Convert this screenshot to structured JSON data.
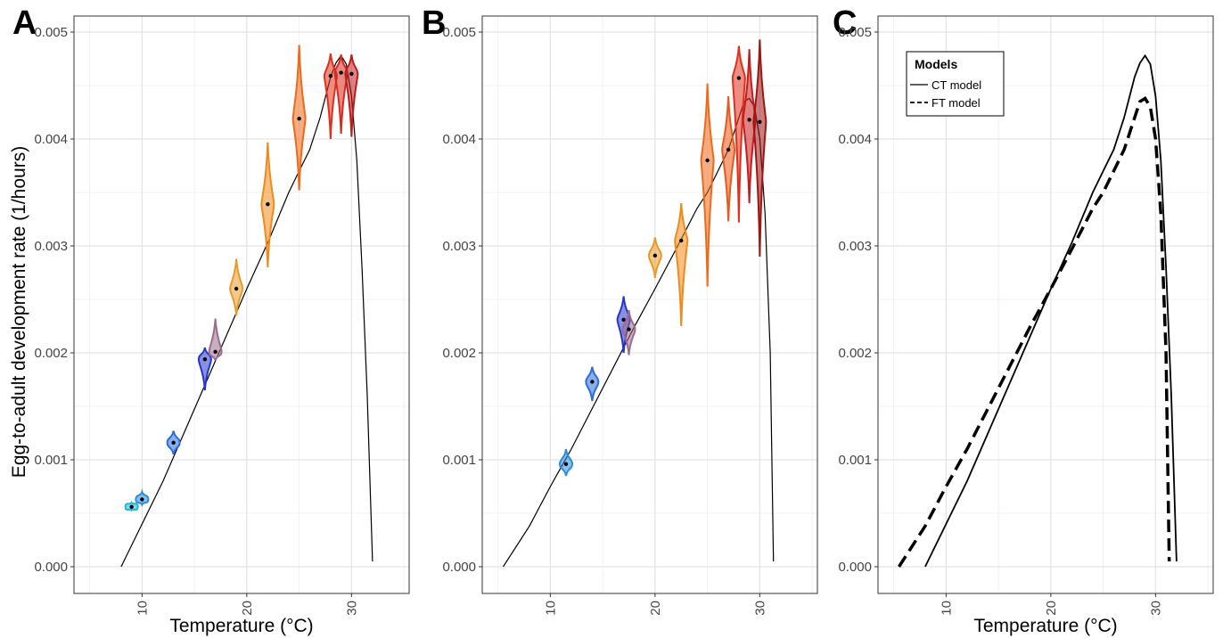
{
  "figure": {
    "ylabel": "Egg-to-adult   development rate (1/hours)"
  },
  "chart_data": [
    {
      "panel": "A",
      "type": "line",
      "xlabel": "Temperature (°C)",
      "ylabel": "Egg-to-adult   development rate (1/hours)",
      "xlim": [
        3.5,
        35.5
      ],
      "ylim": [
        -0.00025,
        0.00515
      ],
      "xticks": [
        10,
        20,
        30
      ],
      "xticks_labels": [
        "10",
        "20",
        "30"
      ],
      "yticks": [
        0.0,
        0.001,
        0.002,
        0.003,
        0.004,
        0.005
      ],
      "yticks_labels": [
        "0.000",
        "0.001",
        "0.002",
        "0.003",
        "0.004",
        "0.005"
      ],
      "grid": true,
      "curve": {
        "x": [
          8,
          10,
          12,
          14,
          16,
          18,
          20,
          22,
          24,
          25,
          26,
          27,
          28,
          28.5,
          29,
          29.5,
          30,
          30.5,
          31,
          31.5,
          32
        ],
        "y": [
          0.0,
          0.0004,
          0.0008,
          0.00125,
          0.0017,
          0.00215,
          0.0026,
          0.00303,
          0.0035,
          0.0037,
          0.0039,
          0.0042,
          0.00458,
          0.00471,
          0.00478,
          0.0047,
          0.0044,
          0.0038,
          0.0028,
          0.0016,
          5e-05
        ]
      },
      "violins": [
        {
          "x": 9,
          "median": 0.00056,
          "lo": 0.00053,
          "hi": 0.0006,
          "color": "#21b8d6"
        },
        {
          "x": 10,
          "median": 0.00063,
          "lo": 0.00058,
          "hi": 0.0007,
          "color": "#2c8bdb"
        },
        {
          "x": 13,
          "median": 0.00116,
          "lo": 0.00105,
          "hi": 0.00127,
          "color": "#2a6cdc"
        },
        {
          "x": 16,
          "median": 0.00194,
          "lo": 0.00165,
          "hi": 0.00205,
          "color": "#2535c9"
        },
        {
          "x": 17,
          "median": 0.00201,
          "lo": 0.00193,
          "hi": 0.00232,
          "color": "#9c6b8e"
        },
        {
          "x": 19,
          "median": 0.0026,
          "lo": 0.00235,
          "hi": 0.00288,
          "color": "#e99a2a"
        },
        {
          "x": 22,
          "median": 0.00339,
          "lo": 0.0028,
          "hi": 0.00397,
          "color": "#f08a1a"
        },
        {
          "x": 25,
          "median": 0.00419,
          "lo": 0.00352,
          "hi": 0.00488,
          "color": "#ee6a1a"
        },
        {
          "x": 28,
          "median": 0.00459,
          "lo": 0.004,
          "hi": 0.0048,
          "color": "#e0301c"
        },
        {
          "x": 29,
          "median": 0.00462,
          "lo": 0.00405,
          "hi": 0.00479,
          "color": "#d62a1e"
        },
        {
          "x": 30,
          "median": 0.00461,
          "lo": 0.00402,
          "hi": 0.00479,
          "color": "#c01c1c"
        }
      ]
    },
    {
      "panel": "B",
      "type": "line",
      "xlabel": "",
      "ylabel": "",
      "xlim": [
        3.5,
        35.5
      ],
      "ylim": [
        -0.00025,
        0.00515
      ],
      "xticks": [
        10,
        20,
        30
      ],
      "xticks_labels": [
        "10",
        "20",
        "30"
      ],
      "yticks": [
        0.0,
        0.001,
        0.002,
        0.003,
        0.004,
        0.005
      ],
      "yticks_labels": [
        "0.000",
        "0.001",
        "0.002",
        "0.003",
        "0.004",
        "0.005"
      ],
      "grid": true,
      "curve": {
        "x": [
          5.5,
          8,
          10,
          12,
          14,
          16,
          18,
          20,
          22,
          24,
          25,
          26,
          27,
          28,
          28.5,
          29,
          29.5,
          30,
          30.5,
          31,
          31.3
        ],
        "y": [
          0.0,
          0.00038,
          0.00075,
          0.0011,
          0.00148,
          0.00186,
          0.00224,
          0.0026,
          0.00297,
          0.00335,
          0.0035,
          0.0037,
          0.0039,
          0.0042,
          0.00435,
          0.00438,
          0.0043,
          0.004,
          0.0033,
          0.002,
          5e-05
        ]
      },
      "violins": [
        {
          "x": 11.5,
          "median": 0.00096,
          "lo": 0.00085,
          "hi": 0.0011,
          "color": "#2c8bdb"
        },
        {
          "x": 14,
          "median": 0.00173,
          "lo": 0.00155,
          "hi": 0.00187,
          "color": "#2a6cdc"
        },
        {
          "x": 17,
          "median": 0.00231,
          "lo": 0.002,
          "hi": 0.00253,
          "color": "#2535c9"
        },
        {
          "x": 17.5,
          "median": 0.00222,
          "lo": 0.00198,
          "hi": 0.0024,
          "color": "#9c6b8e"
        },
        {
          "x": 20,
          "median": 0.00291,
          "lo": 0.0027,
          "hi": 0.00308,
          "color": "#e99a2a"
        },
        {
          "x": 22.5,
          "median": 0.00305,
          "lo": 0.00225,
          "hi": 0.0034,
          "color": "#f08a1a"
        },
        {
          "x": 25,
          "median": 0.0038,
          "lo": 0.00262,
          "hi": 0.00452,
          "color": "#ee6a1a"
        },
        {
          "x": 27,
          "median": 0.0039,
          "lo": 0.00323,
          "hi": 0.0044,
          "color": "#e85a1a"
        },
        {
          "x": 28,
          "median": 0.00457,
          "lo": 0.00322,
          "hi": 0.00487,
          "color": "#e0301c"
        },
        {
          "x": 29,
          "median": 0.00418,
          "lo": 0.0034,
          "hi": 0.00484,
          "color": "#c81c1c"
        },
        {
          "x": 30,
          "median": 0.00416,
          "lo": 0.0029,
          "hi": 0.00493,
          "color": "#a01414"
        }
      ]
    },
    {
      "panel": "C",
      "type": "line",
      "xlabel": "Temperature (°C)",
      "ylabel": "",
      "xlim": [
        3.5,
        35.5
      ],
      "ylim": [
        -0.00025,
        0.00515
      ],
      "xticks": [
        10,
        20,
        30
      ],
      "xticks_labels": [
        "10",
        "20",
        "30"
      ],
      "yticks": [
        0.0,
        0.001,
        0.002,
        0.003,
        0.004,
        0.005
      ],
      "yticks_labels": [
        "0.000",
        "0.001",
        "0.002",
        "0.003",
        "0.004",
        "0.005"
      ],
      "grid": true,
      "legend": {
        "title": "Models",
        "position": "top-left",
        "entries": [
          "CT model",
          "FT model"
        ]
      },
      "series": [
        {
          "name": "CT model",
          "style": "solid",
          "x": [
            8,
            10,
            12,
            14,
            16,
            18,
            20,
            22,
            24,
            25,
            26,
            27,
            28,
            28.5,
            29,
            29.5,
            30,
            30.5,
            31,
            31.5,
            32
          ],
          "y": [
            0.0,
            0.0004,
            0.0008,
            0.00125,
            0.0017,
            0.00215,
            0.0026,
            0.00303,
            0.0035,
            0.0037,
            0.0039,
            0.0042,
            0.00458,
            0.00471,
            0.00478,
            0.0047,
            0.0044,
            0.0038,
            0.0028,
            0.0016,
            5e-05
          ]
        },
        {
          "name": "FT model",
          "style": "dashed",
          "x": [
            5.5,
            8,
            10,
            12,
            14,
            16,
            18,
            20,
            22,
            24,
            25,
            26,
            27,
            28,
            28.5,
            29,
            29.5,
            30,
            30.5,
            31,
            31.3
          ],
          "y": [
            0.0,
            0.00038,
            0.00075,
            0.0011,
            0.00148,
            0.00186,
            0.00224,
            0.0026,
            0.00297,
            0.00335,
            0.0035,
            0.0037,
            0.0039,
            0.0042,
            0.00435,
            0.00438,
            0.0043,
            0.004,
            0.0033,
            0.002,
            5e-05
          ]
        }
      ]
    }
  ]
}
